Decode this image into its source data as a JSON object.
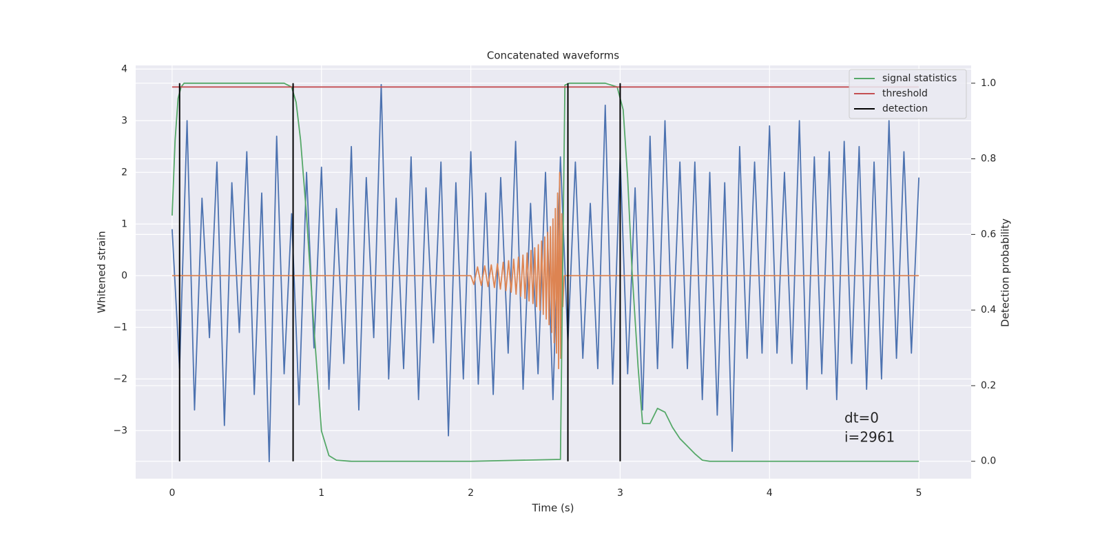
{
  "chart_data": {
    "type": "line",
    "title": "Concatenated waveforms",
    "xlabel": "Time (s)",
    "ylabel": "Whitened strain",
    "y2label": "Detection probability",
    "xlim": [
      -0.244,
      5.35
    ],
    "ylim": [
      -3.93,
      4.07
    ],
    "y2lim": [
      -0.046,
      1.047
    ],
    "xticks": [
      0,
      1,
      2,
      3,
      4,
      5
    ],
    "yticks": [
      {
        "value": -3,
        "label": "−3"
      },
      {
        "value": -2,
        "label": "−2"
      },
      {
        "value": -1,
        "label": "−1"
      },
      0,
      1,
      2,
      3,
      4
    ],
    "y2ticks": [
      {
        "value": 0,
        "label": "0.0"
      },
      0.2,
      0.4,
      0.6,
      0.8,
      {
        "value": 1,
        "label": "1.0"
      }
    ],
    "grid": true,
    "legend": "upper right",
    "annotations": [
      "dt=0",
      "i=2961"
    ],
    "series": [
      {
        "color": "#4c72b0",
        "x": [
          0,
          0.05,
          0.1,
          0.15,
          0.2,
          0.25,
          0.3,
          0.35,
          0.4,
          0.45,
          0.5,
          0.55,
          0.6,
          0.65,
          0.7,
          0.75,
          0.8,
          0.85,
          0.9,
          0.95,
          1,
          1.05,
          1.1,
          1.15,
          1.2,
          1.25,
          1.3,
          1.35,
          1.4,
          1.45,
          1.5,
          1.55,
          1.6,
          1.65,
          1.7,
          1.75,
          1.8,
          1.85,
          1.9,
          1.95,
          2,
          2.05,
          2.1,
          2.15,
          2.2,
          2.25,
          2.3,
          2.35,
          2.4,
          2.45,
          2.5,
          2.55,
          2.6,
          2.65,
          2.7,
          2.75,
          2.8,
          2.85,
          2.9,
          2.95,
          3,
          3.05,
          3.1,
          3.15,
          3.2,
          3.25,
          3.3,
          3.35,
          3.4,
          3.45,
          3.5,
          3.55,
          3.6,
          3.65,
          3.7,
          3.75,
          3.8,
          3.85,
          3.9,
          3.95,
          4,
          4.05,
          4.1,
          4.15,
          4.2,
          4.25,
          4.3,
          4.35,
          4.4,
          4.45,
          4.5,
          4.55,
          4.6,
          4.65,
          4.7,
          4.75,
          4.8,
          4.85,
          4.9,
          4.95,
          5
        ],
        "values": [
          0.9,
          -1.8,
          3.0,
          -2.6,
          1.5,
          -1.2,
          2.2,
          -2.9,
          1.8,
          -1.1,
          2.4,
          -2.3,
          1.6,
          -3.6,
          2.7,
          -1.9,
          1.2,
          -2.5,
          2.0,
          -1.4,
          2.1,
          -2.2,
          1.3,
          -1.7,
          2.5,
          -2.6,
          1.9,
          -1.2,
          3.7,
          -2.0,
          1.5,
          -1.8,
          2.3,
          -2.4,
          1.7,
          -1.3,
          2.2,
          -3.1,
          1.8,
          -2.0,
          2.4,
          -2.1,
          1.6,
          -2.3,
          1.9,
          -1.5,
          2.6,
          -2.2,
          1.4,
          -1.9,
          2.0,
          -2.4,
          2.3,
          -1.3,
          2.2,
          -1.6,
          1.4,
          -1.8,
          3.3,
          -2.1,
          2.3,
          -1.9,
          1.7,
          -2.6,
          2.7,
          -1.8,
          3.0,
          -1.4,
          2.2,
          -1.8,
          2.2,
          -2.4,
          2.0,
          -2.7,
          1.8,
          -3.4,
          2.5,
          -1.6,
          2.2,
          -1.5,
          2.9,
          -1.5,
          2.0,
          -1.7,
          3.0,
          -2.2,
          2.3,
          -1.9,
          2.4,
          -2.4,
          2.6,
          -1.7,
          2.5,
          -2.2,
          2.2,
          -2.0,
          3.0,
          -1.6,
          2.4,
          -1.5,
          1.9
        ]
      },
      {
        "color": "#dd8452",
        "x": [
          0,
          2.0,
          2.02,
          2.045,
          2.07,
          2.093,
          2.115,
          2.137,
          2.158,
          2.178,
          2.198,
          2.217,
          2.235,
          2.253,
          2.27,
          2.287,
          2.303,
          2.319,
          2.334,
          2.349,
          2.363,
          2.377,
          2.39,
          2.403,
          2.416,
          2.428,
          2.44,
          2.452,
          2.463,
          2.474,
          2.485,
          2.495,
          2.505,
          2.515,
          2.524,
          2.533,
          2.542,
          2.55,
          2.558,
          2.566,
          2.574,
          2.581,
          2.588,
          2.595,
          2.602,
          2.609,
          2.616,
          2.625,
          2.64,
          5.0
        ],
        "values": [
          0,
          0,
          -0.17,
          0.17,
          -0.19,
          0.19,
          -0.21,
          0.21,
          -0.23,
          0.23,
          -0.26,
          0.26,
          -0.29,
          0.29,
          -0.32,
          0.32,
          -0.36,
          0.36,
          -0.4,
          0.4,
          -0.44,
          0.44,
          -0.49,
          0.49,
          -0.54,
          0.54,
          -0.6,
          0.6,
          -0.67,
          0.67,
          -0.75,
          0.75,
          -0.84,
          0.84,
          -0.95,
          0.95,
          -1.1,
          1.1,
          -1.3,
          1.3,
          -1.5,
          1.6,
          -1.8,
          2.0,
          -1.6,
          1.2,
          -0.6,
          0,
          0,
          0
        ]
      },
      {
        "name": "signal statistics",
        "color": "#55a868",
        "axis": "y2",
        "x": [
          0,
          0.02,
          0.04,
          0.06,
          0.08,
          0.1,
          0.5,
          0.75,
          0.8,
          0.83,
          0.86,
          0.9,
          0.95,
          1.0,
          1.05,
          1.1,
          1.2,
          2.0,
          2.6,
          2.63,
          2.66,
          2.7,
          2.9,
          2.98,
          3.02,
          3.05,
          3.08,
          3.12,
          3.15,
          3.2,
          3.25,
          3.3,
          3.35,
          3.4,
          3.45,
          3.5,
          3.55,
          3.6,
          4.0,
          5.0
        ],
        "values": [
          0.65,
          0.85,
          0.96,
          0.99,
          1.0,
          1.0,
          1.0,
          1.0,
          0.99,
          0.95,
          0.85,
          0.65,
          0.35,
          0.08,
          0.015,
          0.003,
          0.0,
          0.0,
          0.005,
          0.995,
          1.0,
          1.0,
          1.0,
          0.99,
          0.93,
          0.75,
          0.5,
          0.25,
          0.1,
          0.1,
          0.14,
          0.13,
          0.09,
          0.06,
          0.04,
          0.02,
          0.003,
          0.0,
          0.0,
          0.0
        ]
      },
      {
        "name": "threshold",
        "color": "#c44e52",
        "axis": "y2",
        "x": [
          0,
          5
        ],
        "values": [
          0.99,
          0.99
        ]
      },
      {
        "name": "detection",
        "color": "#000000",
        "axis": "y2",
        "style": "vlines",
        "x": [
          0.05,
          0.81,
          2.65,
          3.0
        ],
        "values": [
          1,
          1,
          1,
          1
        ]
      }
    ]
  }
}
